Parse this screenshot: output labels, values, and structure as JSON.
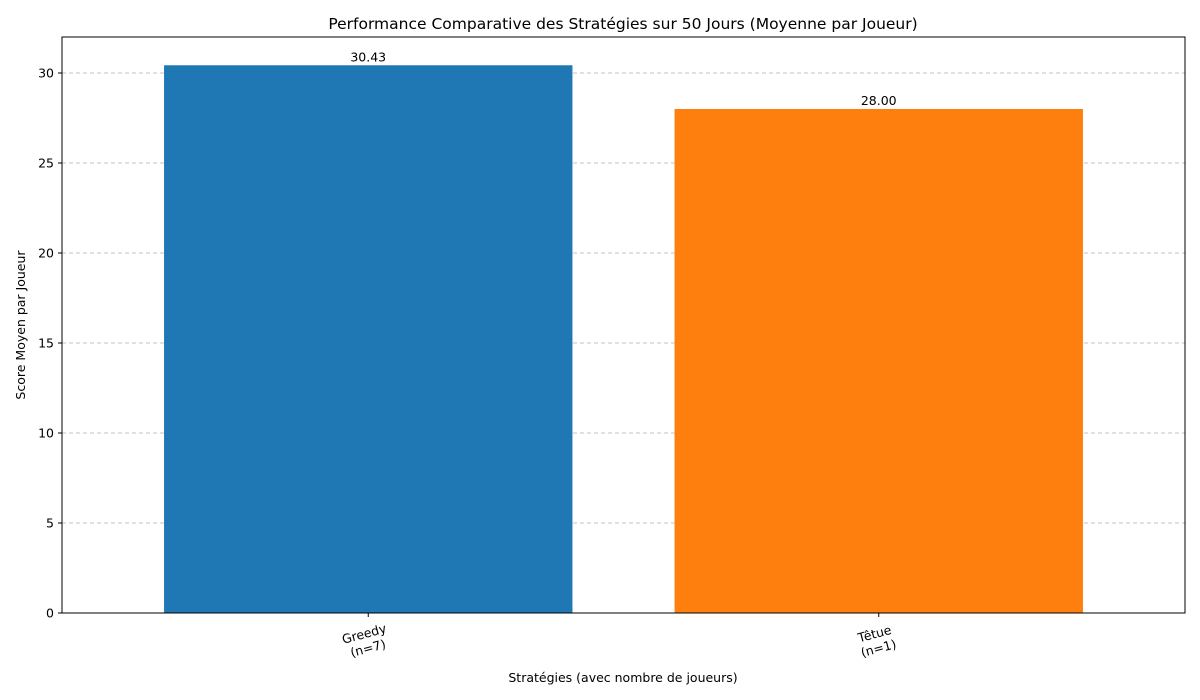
{
  "chart_data": {
    "type": "bar",
    "title": "Performance Comparative des Stratégies sur 50 Jours (Moyenne par Joueur)",
    "xlabel": "Stratégies (avec nombre de joueurs)",
    "ylabel": "Score Moyen par Joueur",
    "categories": [
      [
        "Greedy",
        "(n=7)"
      ],
      [
        "Têtue",
        "(n=1)"
      ]
    ],
    "values": [
      30.43,
      28.0
    ],
    "data_labels": [
      "30.43",
      "28.00"
    ],
    "colors": [
      "#1f77b4",
      "#ff7f0e"
    ],
    "ylim": [
      0,
      32
    ],
    "yticks": [
      0,
      5,
      10,
      15,
      20,
      25,
      30
    ],
    "grid": true,
    "grid_axis": "y",
    "xtick_rotation_deg": 15
  }
}
